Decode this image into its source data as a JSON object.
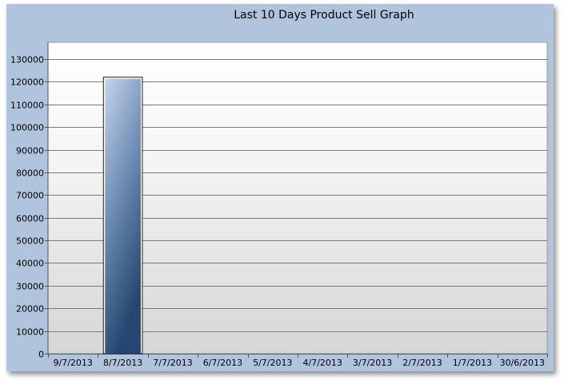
{
  "chart_data": {
    "type": "bar",
    "title": "Last 10 Days Product Sell Graph",
    "xlabel": "",
    "ylabel": "",
    "categories": [
      "9/7/2013",
      "8/7/2013",
      "7/7/2013",
      "6/7/2013",
      "5/7/2013",
      "4/7/2013",
      "3/7/2013",
      "2/7/2013",
      "1/7/2013",
      "30/6/2013"
    ],
    "values": [
      0,
      122000,
      0,
      0,
      0,
      0,
      0,
      0,
      0,
      0
    ],
    "ylim": [
      0,
      130000
    ],
    "yticks": [
      0,
      10000,
      20000,
      30000,
      40000,
      50000,
      60000,
      70000,
      80000,
      90000,
      100000,
      110000,
      120000,
      130000
    ],
    "grid": true,
    "legend": "none",
    "colors": {
      "frame": "#b0c4de",
      "bar_top": "#c4d4ea",
      "bar_bottom": "#244670",
      "grid": "#7a7a7a",
      "plot_top": "#ffffff",
      "plot_bottom": "#d6d6d6"
    }
  }
}
